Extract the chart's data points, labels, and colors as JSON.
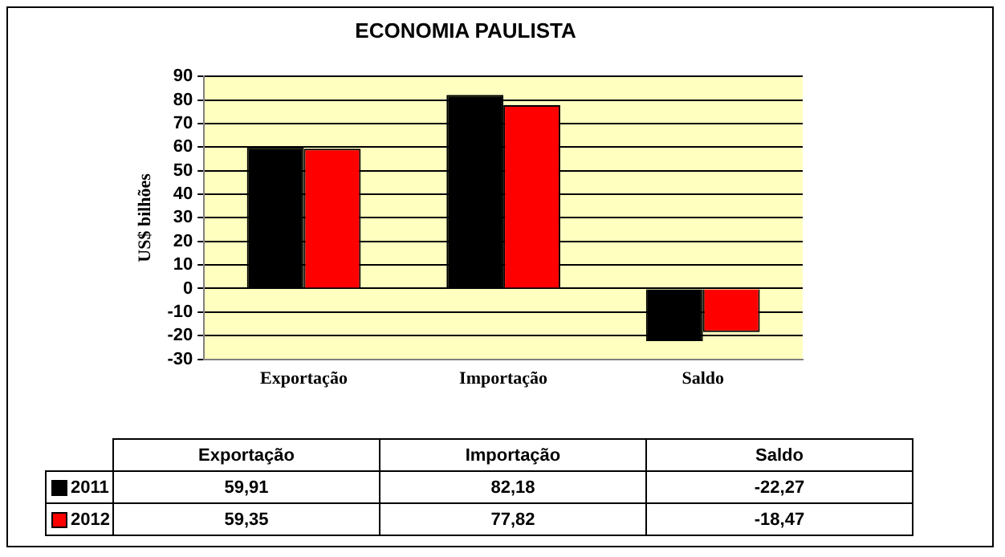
{
  "chart_data": {
    "type": "bar",
    "title": "ECONOMIA PAULISTA",
    "ylabel": "US$ bilhões",
    "categories": [
      "Exportação",
      "Importação",
      "Saldo"
    ],
    "series": [
      {
        "name": "2011",
        "color": "#000000",
        "values": [
          59.91,
          82.18,
          -22.27
        ],
        "value_labels": [
          "59,91",
          "82,18",
          "-22,27"
        ]
      },
      {
        "name": "2012",
        "color": "#ff0000",
        "values": [
          59.35,
          77.82,
          -18.47
        ],
        "value_labels": [
          "59,35",
          "77,82",
          "-18,47"
        ]
      }
    ],
    "ylim": [
      -30,
      90
    ],
    "yticks": [
      -30,
      -20,
      -10,
      0,
      10,
      20,
      30,
      40,
      50,
      60,
      70,
      80,
      90
    ],
    "grid": "y",
    "legend": "bottom left"
  }
}
